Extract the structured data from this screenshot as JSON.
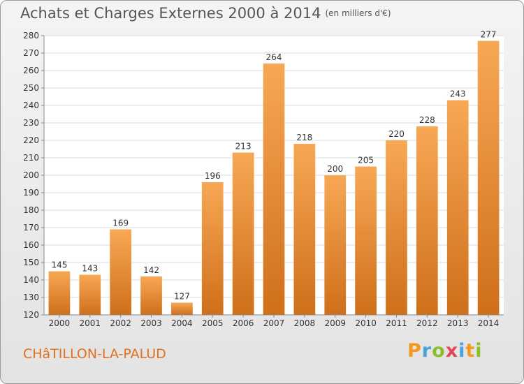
{
  "header": {
    "title": "Achats et Charges Externes 2000 à 2014",
    "unit": "(en milliers d'€)"
  },
  "footer": {
    "city": "CHâTILLON-LA-PALUD",
    "logo_text": "Proxiti"
  },
  "colors": {
    "bar_light": "#f7a855",
    "bar_dark": "#cf6f1a",
    "title": "#555555",
    "city": "#e0701f"
  },
  "chart_data": {
    "type": "bar",
    "title": "Achats et Charges Externes 2000 à 2014",
    "subtitle": "(en milliers d'€)",
    "categories": [
      "2000",
      "2001",
      "2002",
      "2003",
      "2004",
      "2005",
      "2006",
      "2007",
      "2008",
      "2009",
      "2010",
      "2011",
      "2012",
      "2013",
      "2014"
    ],
    "values": [
      145,
      143,
      169,
      142,
      127,
      196,
      213,
      264,
      218,
      200,
      205,
      220,
      228,
      243,
      277
    ],
    "xlabel": "",
    "ylabel": "",
    "ylim": [
      120,
      280
    ],
    "yticks": [
      120,
      130,
      140,
      150,
      160,
      170,
      180,
      190,
      200,
      210,
      220,
      230,
      240,
      250,
      260,
      270,
      280
    ],
    "grid": true,
    "legend": "none",
    "data_labels": true
  }
}
